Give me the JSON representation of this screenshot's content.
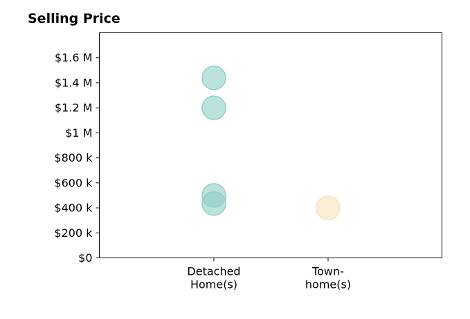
{
  "chart_data": {
    "type": "scatter",
    "title": "Selling Price",
    "xlabel": "",
    "ylabel": "",
    "categories": [
      {
        "lines": [
          "Detached",
          "Home(s)"
        ]
      },
      {
        "lines": [
          "Town-",
          "home(s)"
        ]
      }
    ],
    "ylim": [
      0,
      1800000
    ],
    "yticks": [
      {
        "value": 0,
        "label": "$0"
      },
      {
        "value": 200000,
        "label": "$200 k"
      },
      {
        "value": 400000,
        "label": "$400 k"
      },
      {
        "value": 600000,
        "label": "$600 k"
      },
      {
        "value": 800000,
        "label": "$800 k"
      },
      {
        "value": 1000000,
        "label": "$1 M"
      },
      {
        "value": 1200000,
        "label": "$1.2 M"
      },
      {
        "value": 1400000,
        "label": "$1.4 M"
      },
      {
        "value": 1600000,
        "label": "$1.6 M"
      }
    ],
    "grid": false,
    "series": [
      {
        "category_index": 0,
        "color": "#8fcfc7",
        "values": [
          1440000,
          1200000,
          500000,
          435000
        ]
      },
      {
        "category_index": 1,
        "color": "#f7e3b8",
        "values": [
          400000
        ]
      }
    ]
  }
}
